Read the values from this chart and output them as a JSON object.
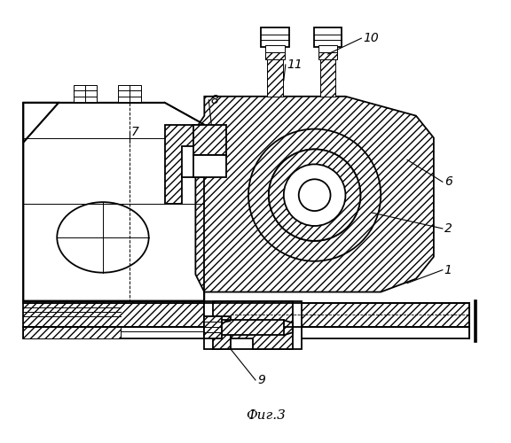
{
  "title": "Фиг.3",
  "background_color": "#ffffff",
  "figsize": [
    5.76,
    5.0
  ],
  "dpi": 100,
  "lw": 1.3,
  "tlw": 0.7
}
